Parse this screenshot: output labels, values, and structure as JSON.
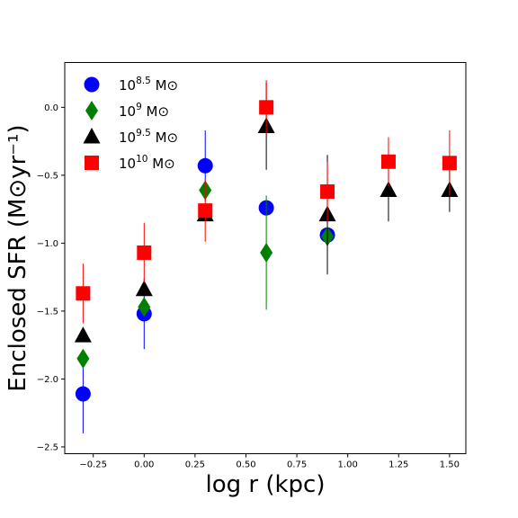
{
  "chart_data": {
    "type": "scatter",
    "title": "",
    "xlabel": "log r (kpc)",
    "ylabel": "Enclosed SFR (M⊙yr⁻¹)",
    "xlim": [
      -0.39,
      1.58
    ],
    "ylim": [
      -2.55,
      0.33
    ],
    "xticks": [
      -0.25,
      0.0,
      0.25,
      0.5,
      0.75,
      1.0,
      1.25,
      1.5
    ],
    "xtick_labels": [
      "−0.25",
      "0.00",
      "0.25",
      "0.50",
      "0.75",
      "1.00",
      "1.25",
      "1.50"
    ],
    "yticks": [
      -2.5,
      -2.0,
      -1.5,
      -1.0,
      -0.5,
      0.0
    ],
    "ytick_labels": [
      "−2.5",
      "−2.0",
      "−1.5",
      "−1.0",
      "−0.5",
      "0.0"
    ],
    "grid": false,
    "legend_position": "top-left",
    "series": [
      {
        "name_base": "10",
        "name_exp": "8.5",
        "name_unit": "M⊙",
        "marker": "circle",
        "color": "#0000ff",
        "points": [
          {
            "x": -0.3,
            "y": -2.11,
            "err": 0.29
          },
          {
            "x": 0.0,
            "y": -1.52,
            "err": 0.26
          },
          {
            "x": 0.3,
            "y": -0.43,
            "err": 0.26
          },
          {
            "x": 0.6,
            "y": -0.74,
            "err": 0.0
          },
          {
            "x": 0.9,
            "y": -0.94,
            "err": 0.0
          }
        ]
      },
      {
        "name_base": "10",
        "name_exp": "9",
        "name_unit": "M⊙",
        "marker": "diamond",
        "color": "#008000",
        "points": [
          {
            "x": -0.3,
            "y": -1.85,
            "err": 0.0
          },
          {
            "x": 0.0,
            "y": -1.47,
            "err": 0.0
          },
          {
            "x": 0.3,
            "y": -0.61,
            "err": 0.0
          },
          {
            "x": 0.6,
            "y": -1.07,
            "err": 0.42
          },
          {
            "x": 0.9,
            "y": -0.95,
            "err": 0.0
          }
        ]
      },
      {
        "name_base": "10",
        "name_exp": "9.5",
        "name_unit": "M⊙",
        "marker": "triangle",
        "color": "#000000",
        "points": [
          {
            "x": -0.3,
            "y": -1.68,
            "err": 0.0
          },
          {
            "x": 0.0,
            "y": -1.34,
            "err": 0.0
          },
          {
            "x": 0.3,
            "y": -0.79,
            "err": 0.0
          },
          {
            "x": 0.6,
            "y": -0.14,
            "err": 0.32
          },
          {
            "x": 0.9,
            "y": -0.79,
            "err": 0.44
          },
          {
            "x": 1.2,
            "y": -0.61,
            "err": 0.23
          },
          {
            "x": 1.5,
            "y": -0.61,
            "err": 0.16
          }
        ]
      },
      {
        "name_base": "10",
        "name_exp": "10",
        "name_unit": "M⊙",
        "marker": "square",
        "color": "#ff0000",
        "points": [
          {
            "x": -0.3,
            "y": -1.37,
            "err": 0.22
          },
          {
            "x": 0.0,
            "y": -1.07,
            "err": 0.22
          },
          {
            "x": 0.3,
            "y": -0.76,
            "err": 0.23
          },
          {
            "x": 0.6,
            "y": 0.0,
            "err": 0.2
          },
          {
            "x": 0.9,
            "y": -0.62,
            "err": 0.22
          },
          {
            "x": 1.2,
            "y": -0.4,
            "err": 0.18
          },
          {
            "x": 1.5,
            "y": -0.41,
            "err": 0.24
          }
        ]
      }
    ]
  }
}
